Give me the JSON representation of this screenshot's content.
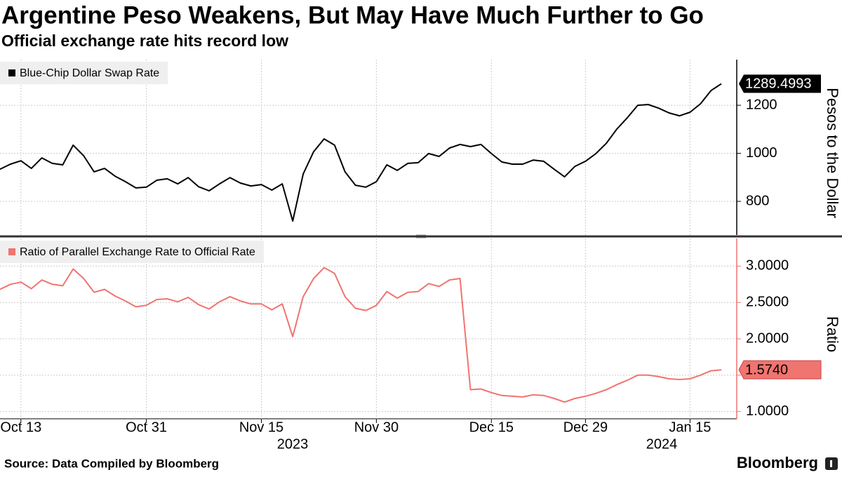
{
  "title": "Argentine Peso Weakens, But May Have Much Further to Go",
  "subtitle": "Official exchange rate hits record low",
  "source": "Source: Data Compiled by Bloomberg",
  "brand": "Bloomberg",
  "chart_data": [
    {
      "type": "line",
      "series": [
        {
          "name": "Blue-Chip Dollar Swap Rate",
          "color": "#000000",
          "values": [
            934,
            955,
            969,
            937,
            981,
            958,
            952,
            1034,
            990,
            923,
            937,
            905,
            882,
            856,
            859,
            888,
            894,
            873,
            899,
            861,
            844,
            873,
            899,
            876,
            864,
            870,
            847,
            873,
            718,
            914,
            1007,
            1060,
            1034,
            923,
            867,
            859,
            882,
            952,
            929,
            958,
            961,
            999,
            987,
            1022,
            1037,
            1028,
            1037,
            999,
            964,
            955,
            955,
            972,
            967,
            934,
            902,
            946,
            967,
            999,
            1042,
            1101,
            1148,
            1200,
            1203,
            1188,
            1168,
            1156,
            1171,
            1206,
            1261,
            1289.4993
          ]
        }
      ],
      "ylabel": "Pesos to the Dollar",
      "ylim": [
        660,
        1390
      ],
      "yticks": [
        800,
        1000,
        1200
      ],
      "grid": true
    },
    {
      "type": "line",
      "categories": [
        null,
        null,
        "Oct 13",
        null,
        null,
        null,
        null,
        null,
        null,
        null,
        null,
        null,
        null,
        null,
        "Oct 31",
        null,
        null,
        null,
        null,
        null,
        null,
        null,
        null,
        null,
        null,
        "Nov 15",
        null,
        null,
        null,
        null,
        null,
        null,
        null,
        null,
        null,
        null,
        "Nov 30",
        null,
        null,
        null,
        null,
        null,
        null,
        null,
        null,
        null,
        null,
        "Dec 15",
        null,
        null,
        null,
        null,
        null,
        null,
        null,
        null,
        "Dec 29",
        null,
        null,
        null,
        null,
        null,
        null,
        null,
        null,
        null,
        "Jan 15",
        null,
        null,
        null
      ],
      "year_labels": [
        "2023",
        "2024"
      ],
      "series": [
        {
          "name": "Ratio of Parallel Exchange Rate to Official Rate",
          "color": "#f07470",
          "values": [
            2.68,
            2.75,
            2.78,
            2.69,
            2.81,
            2.75,
            2.73,
            2.96,
            2.83,
            2.64,
            2.68,
            2.59,
            2.52,
            2.44,
            2.46,
            2.54,
            2.55,
            2.51,
            2.57,
            2.47,
            2.41,
            2.51,
            2.58,
            2.52,
            2.48,
            2.48,
            2.4,
            2.48,
            2.03,
            2.58,
            2.83,
            2.98,
            2.9,
            2.58,
            2.42,
            2.39,
            2.46,
            2.65,
            2.56,
            2.64,
            2.65,
            2.76,
            2.72,
            2.81,
            2.83,
            1.3,
            1.31,
            1.26,
            1.22,
            1.21,
            1.2,
            1.23,
            1.22,
            1.18,
            1.13,
            1.18,
            1.21,
            1.25,
            1.3,
            1.37,
            1.43,
            1.5,
            1.5,
            1.48,
            1.45,
            1.44,
            1.45,
            1.5,
            1.56,
            1.574
          ],
          "value_labels": [
            null,
            null,
            null,
            null,
            null,
            null,
            null,
            null,
            null,
            null,
            null,
            null,
            null,
            null,
            null,
            null,
            null,
            null,
            null,
            null,
            null,
            null,
            null,
            null,
            null,
            null,
            null,
            null,
            null,
            null,
            null,
            null,
            null,
            null,
            null,
            null,
            null,
            null,
            null,
            null,
            null,
            null,
            null,
            null,
            null,
            null,
            null,
            null,
            null,
            null,
            null,
            null,
            null,
            null,
            null,
            null,
            null,
            null,
            null,
            null,
            null,
            null,
            null,
            null,
            null,
            null,
            null,
            null,
            null,
            "1.5740"
          ]
        }
      ],
      "ylabel": "Ratio",
      "ylim": [
        0.9,
        3.38
      ],
      "yticks": [
        {
          "value": 1,
          "label": "1.0000"
        },
        {
          "value": 1.5,
          "label": "1.5000"
        },
        {
          "value": 2,
          "label": "2.0000"
        },
        {
          "value": 2.5,
          "label": "2.5000"
        },
        {
          "value": 3,
          "label": "3.0000"
        }
      ],
      "grid": true
    }
  ]
}
